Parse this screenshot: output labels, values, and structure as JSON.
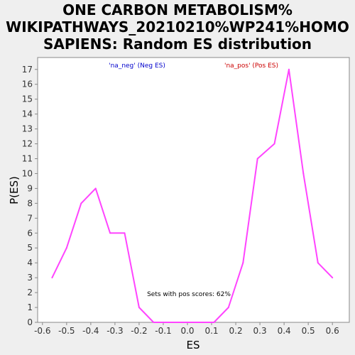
{
  "chart_data": {
    "type": "line",
    "title_lines": [
      "ONE CARBON METABOLISM%",
      "WIKIPATHWAYS_20210210%WP241%HOMO",
      "SAPIENS: Random ES distribution"
    ],
    "xlabel": "ES",
    "ylabel": "P(ES)",
    "xlim": [
      -0.62,
      0.67
    ],
    "ylim": [
      0,
      17.8
    ],
    "xticks": [
      -0.6,
      -0.5,
      -0.4,
      -0.3,
      -0.2,
      -0.1,
      0.0,
      0.1,
      0.2,
      0.3,
      0.4,
      0.5,
      0.6
    ],
    "xtick_labels": [
      "-0.6",
      "-0.5",
      "-0.4",
      "-0.3",
      "-0.2",
      "-0.1",
      "0.0",
      "0.1",
      "0.2",
      "0.3",
      "0.4",
      "0.5",
      "0.6"
    ],
    "yticks": [
      0,
      1,
      2,
      3,
      4,
      5,
      6,
      7,
      8,
      9,
      10,
      11,
      12,
      13,
      14,
      15,
      16,
      17
    ],
    "grid": false,
    "legend": [
      {
        "label": "'na_neg' (Neg ES)",
        "color": "#0000cc"
      },
      {
        "label": "'na_pos' (Pos ES)",
        "color": "#cc0000"
      }
    ],
    "annotation": "Sets with pos scores: 62%",
    "series": [
      {
        "color": "#ff44ff",
        "x": [
          -0.56,
          -0.5,
          -0.44,
          -0.38,
          -0.32,
          -0.26,
          -0.2,
          -0.14,
          -0.08,
          -0.02,
          0.04,
          0.11,
          0.17,
          0.23,
          0.29,
          0.36,
          0.42,
          0.48,
          0.54,
          0.6
        ],
        "y": [
          3,
          5,
          8,
          9,
          6,
          6,
          1,
          0,
          0,
          0,
          0,
          0,
          1,
          4,
          11,
          12,
          17,
          10,
          4,
          3
        ]
      }
    ]
  }
}
